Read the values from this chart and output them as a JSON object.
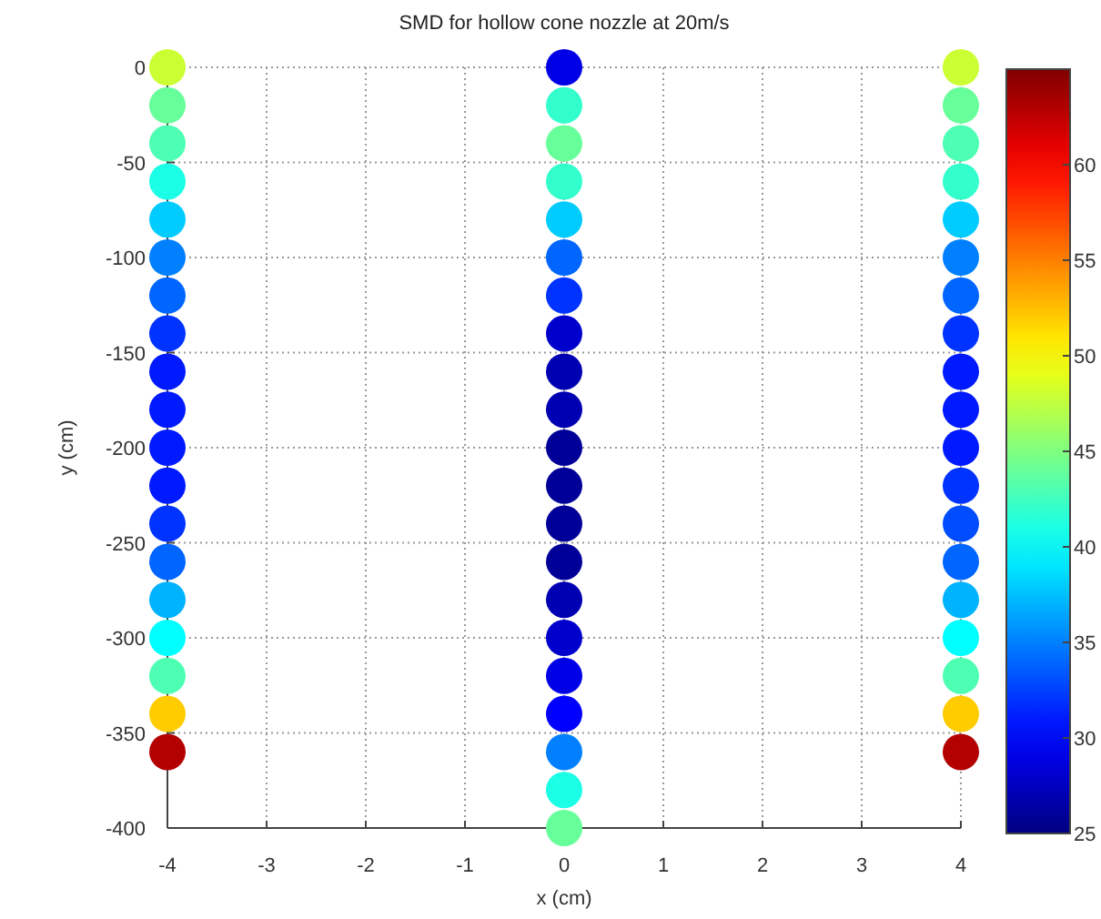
{
  "chart_data": {
    "type": "scatter",
    "title": "SMD for hollow cone nozzle at 20m/s",
    "xlabel": "x (cm)",
    "ylabel": "y (cm)",
    "series": [
      {
        "x": [
          -4,
          -4,
          -4,
          -4,
          -4,
          -4,
          -4,
          -4,
          -4,
          -4,
          -4,
          -4,
          -4,
          -4,
          -4,
          -4,
          -4,
          -4,
          -4,
          0,
          0,
          0,
          0,
          0,
          0,
          0,
          0,
          0,
          0,
          0,
          0,
          0,
          0,
          0,
          0,
          0,
          0,
          0,
          0,
          0,
          4,
          4,
          4,
          4,
          4,
          4,
          4,
          4,
          4,
          4,
          4,
          4,
          4,
          4,
          4,
          4,
          4,
          4,
          4
        ],
        "values": [
          0,
          -20,
          -40,
          -60,
          -80,
          -100,
          -120,
          -140,
          -160,
          -180,
          -200,
          -220,
          -240,
          -260,
          -280,
          -300,
          -320,
          -340,
          -360,
          0,
          -20,
          -40,
          -60,
          -80,
          -100,
          -120,
          -140,
          -160,
          -180,
          -200,
          -220,
          -240,
          -260,
          -280,
          -300,
          -320,
          -340,
          -360,
          -380,
          -400,
          0,
          -20,
          -40,
          -60,
          -80,
          -100,
          -120,
          -140,
          -160,
          -180,
          -200,
          -220,
          -240,
          -260,
          -280,
          -300,
          -320,
          -340,
          -360
        ],
        "cvalues": [
          48,
          44,
          43,
          41,
          38,
          35,
          34,
          32,
          31,
          31,
          31,
          31,
          32,
          34,
          37,
          40,
          43,
          52,
          63,
          29,
          42,
          44,
          42,
          38,
          34,
          32,
          28,
          27,
          27,
          26,
          26,
          26,
          26,
          27,
          28,
          29,
          30,
          35,
          41,
          44,
          48,
          44,
          43,
          42,
          38,
          35,
          34,
          32,
          31,
          31,
          31,
          32,
          33,
          34,
          37,
          40,
          43,
          52,
          63
        ]
      }
    ],
    "xlim": [
      -4,
      4
    ],
    "xticks": [
      -4,
      -3,
      -2,
      -1,
      0,
      1,
      2,
      3,
      4
    ],
    "ylim": [
      -400,
      0
    ],
    "yticks": [
      -400,
      -350,
      -300,
      -250,
      -200,
      -150,
      -100,
      -50,
      0
    ],
    "clim": [
      25,
      65
    ],
    "cticks": [
      25,
      30,
      35,
      40,
      45,
      50,
      55,
      60
    ],
    "grid": true,
    "marker": "circle"
  }
}
